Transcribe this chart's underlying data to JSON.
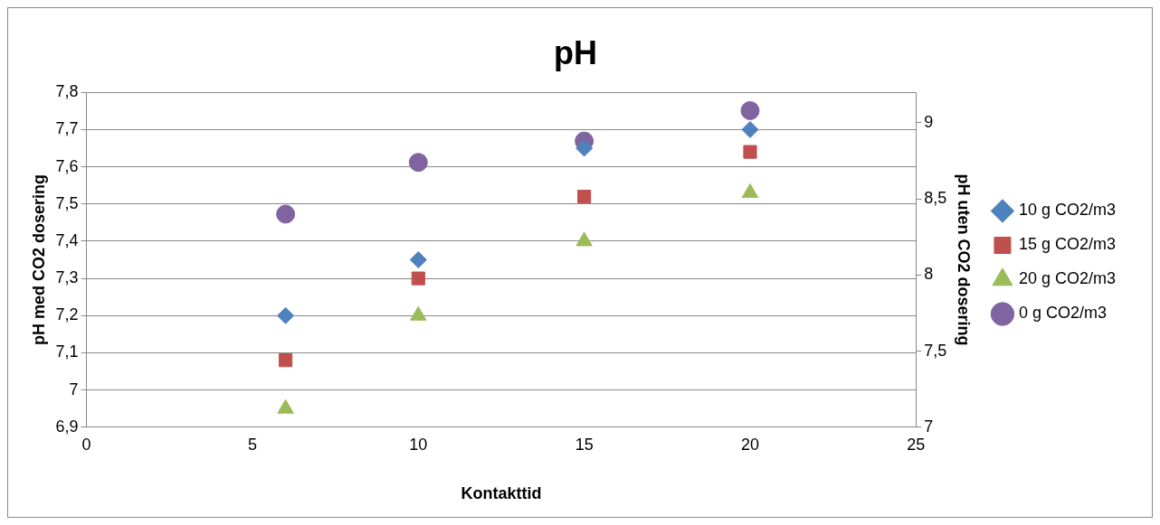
{
  "chart_data": {
    "type": "scatter",
    "title": "pH",
    "xlabel": "Kontakttid",
    "ylabel": "pH med CO2 dosering",
    "y2label": "pH uten CO2 dosering",
    "xlim": [
      0,
      25
    ],
    "xticks": [
      0,
      5,
      10,
      15,
      20,
      25
    ],
    "ylim": [
      6.9,
      7.8
    ],
    "yticks": [
      {
        "value": 6.9,
        "label": "6,9"
      },
      7,
      {
        "value": 7.1,
        "label": "7,1"
      },
      {
        "value": 7.2,
        "label": "7,2"
      },
      {
        "value": 7.3,
        "label": "7,3"
      },
      {
        "value": 7.4,
        "label": "7,4"
      },
      {
        "value": 7.5,
        "label": "7,5"
      },
      {
        "value": 7.6,
        "label": "7,6"
      },
      {
        "value": 7.7,
        "label": "7,7"
      },
      {
        "value": 7.8,
        "label": "7,8"
      }
    ],
    "y2lim": [
      7,
      9.2
    ],
    "y2ticks": [
      7,
      {
        "value": 7.5,
        "label": "7,5"
      },
      8,
      {
        "value": 8.5,
        "label": "8,5"
      },
      9
    ],
    "grid": "y",
    "legend": "right",
    "series": [
      {
        "name": "10 g CO2/m3",
        "color": "#4f81bd",
        "marker": "diamond",
        "x": [
          6,
          10,
          15,
          20
        ],
        "values": [
          7.2,
          7.35,
          7.65,
          7.7
        ]
      },
      {
        "name": "15 g CO2/m3",
        "color": "#c0504d",
        "marker": "square",
        "x": [
          6,
          10,
          15,
          20
        ],
        "values": [
          7.08,
          7.3,
          7.52,
          7.64
        ]
      },
      {
        "name": "20 g CO2/m3",
        "color": "#9bbb59",
        "marker": "triangle",
        "x": [
          6,
          10,
          15,
          20
        ],
        "values": [
          6.95,
          7.2,
          7.4,
          7.53
        ]
      },
      {
        "name": "0 g CO2/m3",
        "color": "#8064a2",
        "marker": "circle",
        "axis": "y2",
        "x": [
          6,
          10,
          15,
          20
        ],
        "values": [
          8.4,
          8.74,
          8.88,
          9.08
        ]
      }
    ]
  }
}
